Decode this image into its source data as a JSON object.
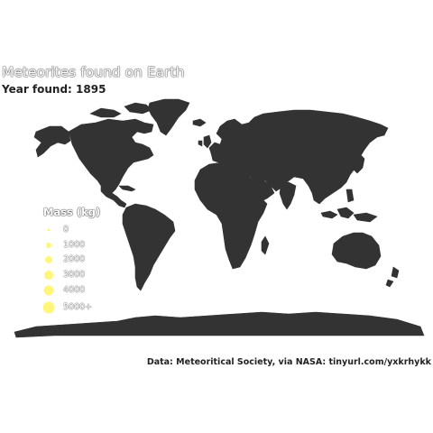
{
  "map": {
    "title": "Meteorites found on Earth",
    "subtitle": "Year found: 1895",
    "caption": "Data: Meteoritical Society, via NASA: tinyurl.com/yxkrhykk",
    "colors": {
      "land": "#333333",
      "background": "#ffffff",
      "marker": "#fff67a"
    },
    "legend": {
      "title": "Mass (kg)",
      "items": [
        {
          "label": "0",
          "value": 0
        },
        {
          "label": "1000",
          "value": 1000
        },
        {
          "label": "2000",
          "value": 2000
        },
        {
          "label": "3000",
          "value": 3000
        },
        {
          "label": "4000",
          "value": 4000
        },
        {
          "label": "5000+",
          "value": 5000
        }
      ]
    }
  }
}
